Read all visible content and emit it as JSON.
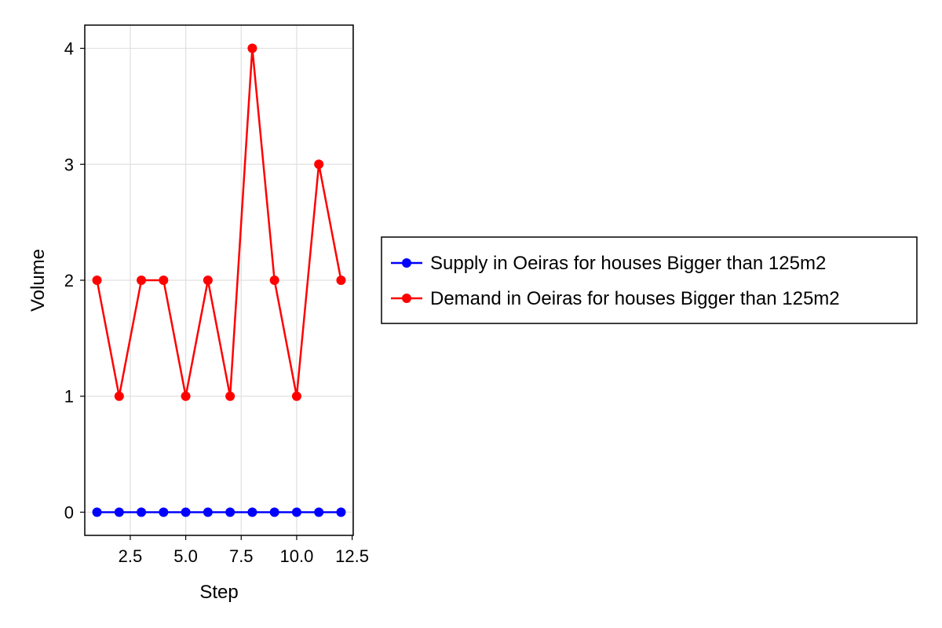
{
  "chart_data": {
    "type": "line",
    "xlabel": "Step",
    "ylabel": "Volume",
    "xlim": [
      0.45,
      12.55
    ],
    "ylim": [
      -0.2,
      4.2
    ],
    "xticks": [
      2.5,
      5.0,
      7.5,
      10.0,
      12.5
    ],
    "xtick_labels": [
      "2.5",
      "5.0",
      "7.5",
      "10.0",
      "12.5"
    ],
    "yticks": [
      0,
      1,
      2,
      3,
      4
    ],
    "ytick_labels": [
      "0",
      "1",
      "2",
      "3",
      "4"
    ],
    "grid": true,
    "legend_position": "right",
    "x": [
      1,
      2,
      3,
      4,
      5,
      6,
      7,
      8,
      9,
      10,
      11,
      12
    ],
    "series": [
      {
        "name": "Supply in Oeiras for houses Bigger than 125m2",
        "color": "#0000ff",
        "values": [
          0,
          0,
          0,
          0,
          0,
          0,
          0,
          0,
          0,
          0,
          0,
          0
        ]
      },
      {
        "name": "Demand in Oeiras for houses Bigger than 125m2",
        "color": "#ff0000",
        "values": [
          2,
          1,
          2,
          2,
          1,
          2,
          1,
          4,
          2,
          1,
          3,
          2
        ]
      }
    ]
  }
}
